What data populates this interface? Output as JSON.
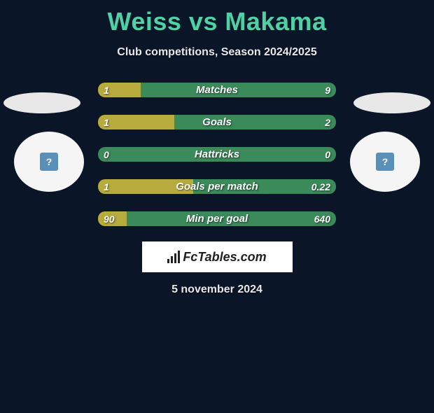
{
  "header": {
    "title": "Weiss vs Makama",
    "subtitle": "Club competitions, Season 2024/2025",
    "title_color": "#4fd1a5",
    "title_fontsize": 36,
    "subtitle_fontsize": 16
  },
  "colors": {
    "background": "#0a1628",
    "bar_left": "#b8ab3e",
    "bar_right": "#3a8a5a",
    "ellipse": "#e8e8e8",
    "circle": "#f5f5f5",
    "avatar": "#5a8fb8",
    "text": "#ffffff"
  },
  "bars": [
    {
      "label": "Matches",
      "left_val": "1",
      "right_val": "9",
      "left_pct": 18
    },
    {
      "label": "Goals",
      "left_val": "1",
      "right_val": "2",
      "left_pct": 32
    },
    {
      "label": "Hattricks",
      "left_val": "0",
      "right_val": "0",
      "left_pct": 0
    },
    {
      "label": "Goals per match",
      "left_val": "1",
      "right_val": "0.22",
      "left_pct": 40
    },
    {
      "label": "Min per goal",
      "left_val": "90",
      "right_val": "640",
      "left_pct": 12
    }
  ],
  "players": {
    "left": {
      "avatar_glyph": "?"
    },
    "right": {
      "avatar_glyph": "?"
    }
  },
  "branding": {
    "label": "FcTables.com"
  },
  "footer": {
    "date": "5 november 2024"
  }
}
